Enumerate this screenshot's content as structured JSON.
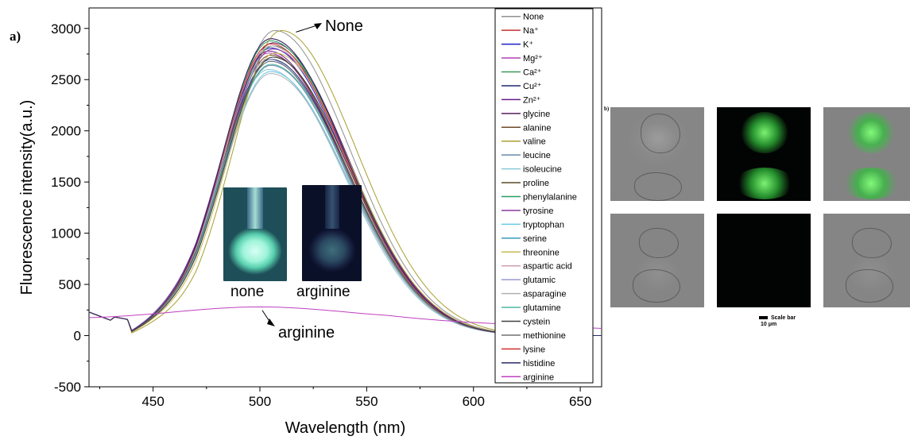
{
  "chart_data": {
    "type": "line",
    "panel_label": "a)",
    "xlabel": "Wavelength (nm)",
    "ylabel": "Fluorescence intensity(a.u.)",
    "xlim": [
      420,
      660
    ],
    "ylim": [
      -500,
      3200
    ],
    "xticks": [
      "450",
      "500",
      "550",
      "600",
      "650"
    ],
    "yticks": [
      "-500",
      "0",
      "500",
      "1000",
      "1500",
      "2000",
      "2500",
      "3000"
    ],
    "annotations": [
      {
        "text": "None",
        "arrow_to_x": 505,
        "arrow_to_y": 2980
      },
      {
        "text": "arginine",
        "arrow_to_x": 500,
        "arrow_to_y": 270
      }
    ],
    "series": [
      {
        "name": "None",
        "color": "#909090",
        "peak": 2980,
        "center": 507
      },
      {
        "name": "Na⁺",
        "color": "#c83030",
        "peak": 2900,
        "center": 505
      },
      {
        "name": "K⁺",
        "color": "#1e22c8",
        "peak": 2810,
        "center": 505
      },
      {
        "name": "Mg²⁺",
        "color": "#b040b0",
        "peak": 2760,
        "center": 504
      },
      {
        "name": "Ca²⁺",
        "color": "#3a9a5a",
        "peak": 2830,
        "center": 506
      },
      {
        "name": "Cu²⁺",
        "color": "#1e2a6e",
        "peak": 2700,
        "center": 505
      },
      {
        "name": "Zn²⁺",
        "color": "#6a1e8a",
        "peak": 2780,
        "center": 504
      },
      {
        "name": "glycine",
        "color": "#5a1e5a",
        "peak": 2860,
        "center": 506
      },
      {
        "name": "alanine",
        "color": "#6e4a28",
        "peak": 2740,
        "center": 505
      },
      {
        "name": "valine",
        "color": "#a8a030",
        "peak": 2980,
        "center": 510
      },
      {
        "name": "leucine",
        "color": "#6a8aaa",
        "peak": 2640,
        "center": 505
      },
      {
        "name": "isoleucine",
        "color": "#8ac8d8",
        "peak": 2600,
        "center": 504
      },
      {
        "name": "proline",
        "color": "#5a4a28",
        "peak": 2720,
        "center": 506
      },
      {
        "name": "phenylalanine",
        "color": "#28a060",
        "peak": 2880,
        "center": 505
      },
      {
        "name": "tyrosine",
        "color": "#8a3aa0",
        "peak": 2800,
        "center": 506
      },
      {
        "name": "tryptophan",
        "color": "#6ac8e8",
        "peak": 2580,
        "center": 505
      },
      {
        "name": "serine",
        "color": "#3a9aba",
        "peak": 2680,
        "center": 505
      },
      {
        "name": "threonine",
        "color": "#c8b850",
        "peak": 2760,
        "center": 507
      },
      {
        "name": "aspartic acid",
        "color": "#d0a0b0",
        "peak": 2830,
        "center": 505
      },
      {
        "name": "glutamic",
        "color": "#9a9ad0",
        "peak": 2700,
        "center": 504
      },
      {
        "name": "asparagine",
        "color": "#b0b0b0",
        "peak": 2560,
        "center": 505
      },
      {
        "name": "glutamine",
        "color": "#50b8a0",
        "peak": 2650,
        "center": 505
      },
      {
        "name": "cystein",
        "color": "#404040",
        "peak": 2720,
        "center": 506
      },
      {
        "name": "methionine",
        "color": "#707070",
        "peak": 2680,
        "center": 505
      },
      {
        "name": "lysine",
        "color": "#d03030",
        "peak": 2850,
        "center": 505
      },
      {
        "name": "histidine",
        "color": "#2a2a6a",
        "peak": 2900,
        "center": 505
      },
      {
        "name": "arginine",
        "color": "#c040c0",
        "peak": 280,
        "center": 500
      }
    ]
  },
  "photos": {
    "none_label": "none",
    "arginine_label": "arginine"
  },
  "microscopy": {
    "panel_label": "b)",
    "scale_label": "Scale bar",
    "scale_unit": "10 μm"
  }
}
